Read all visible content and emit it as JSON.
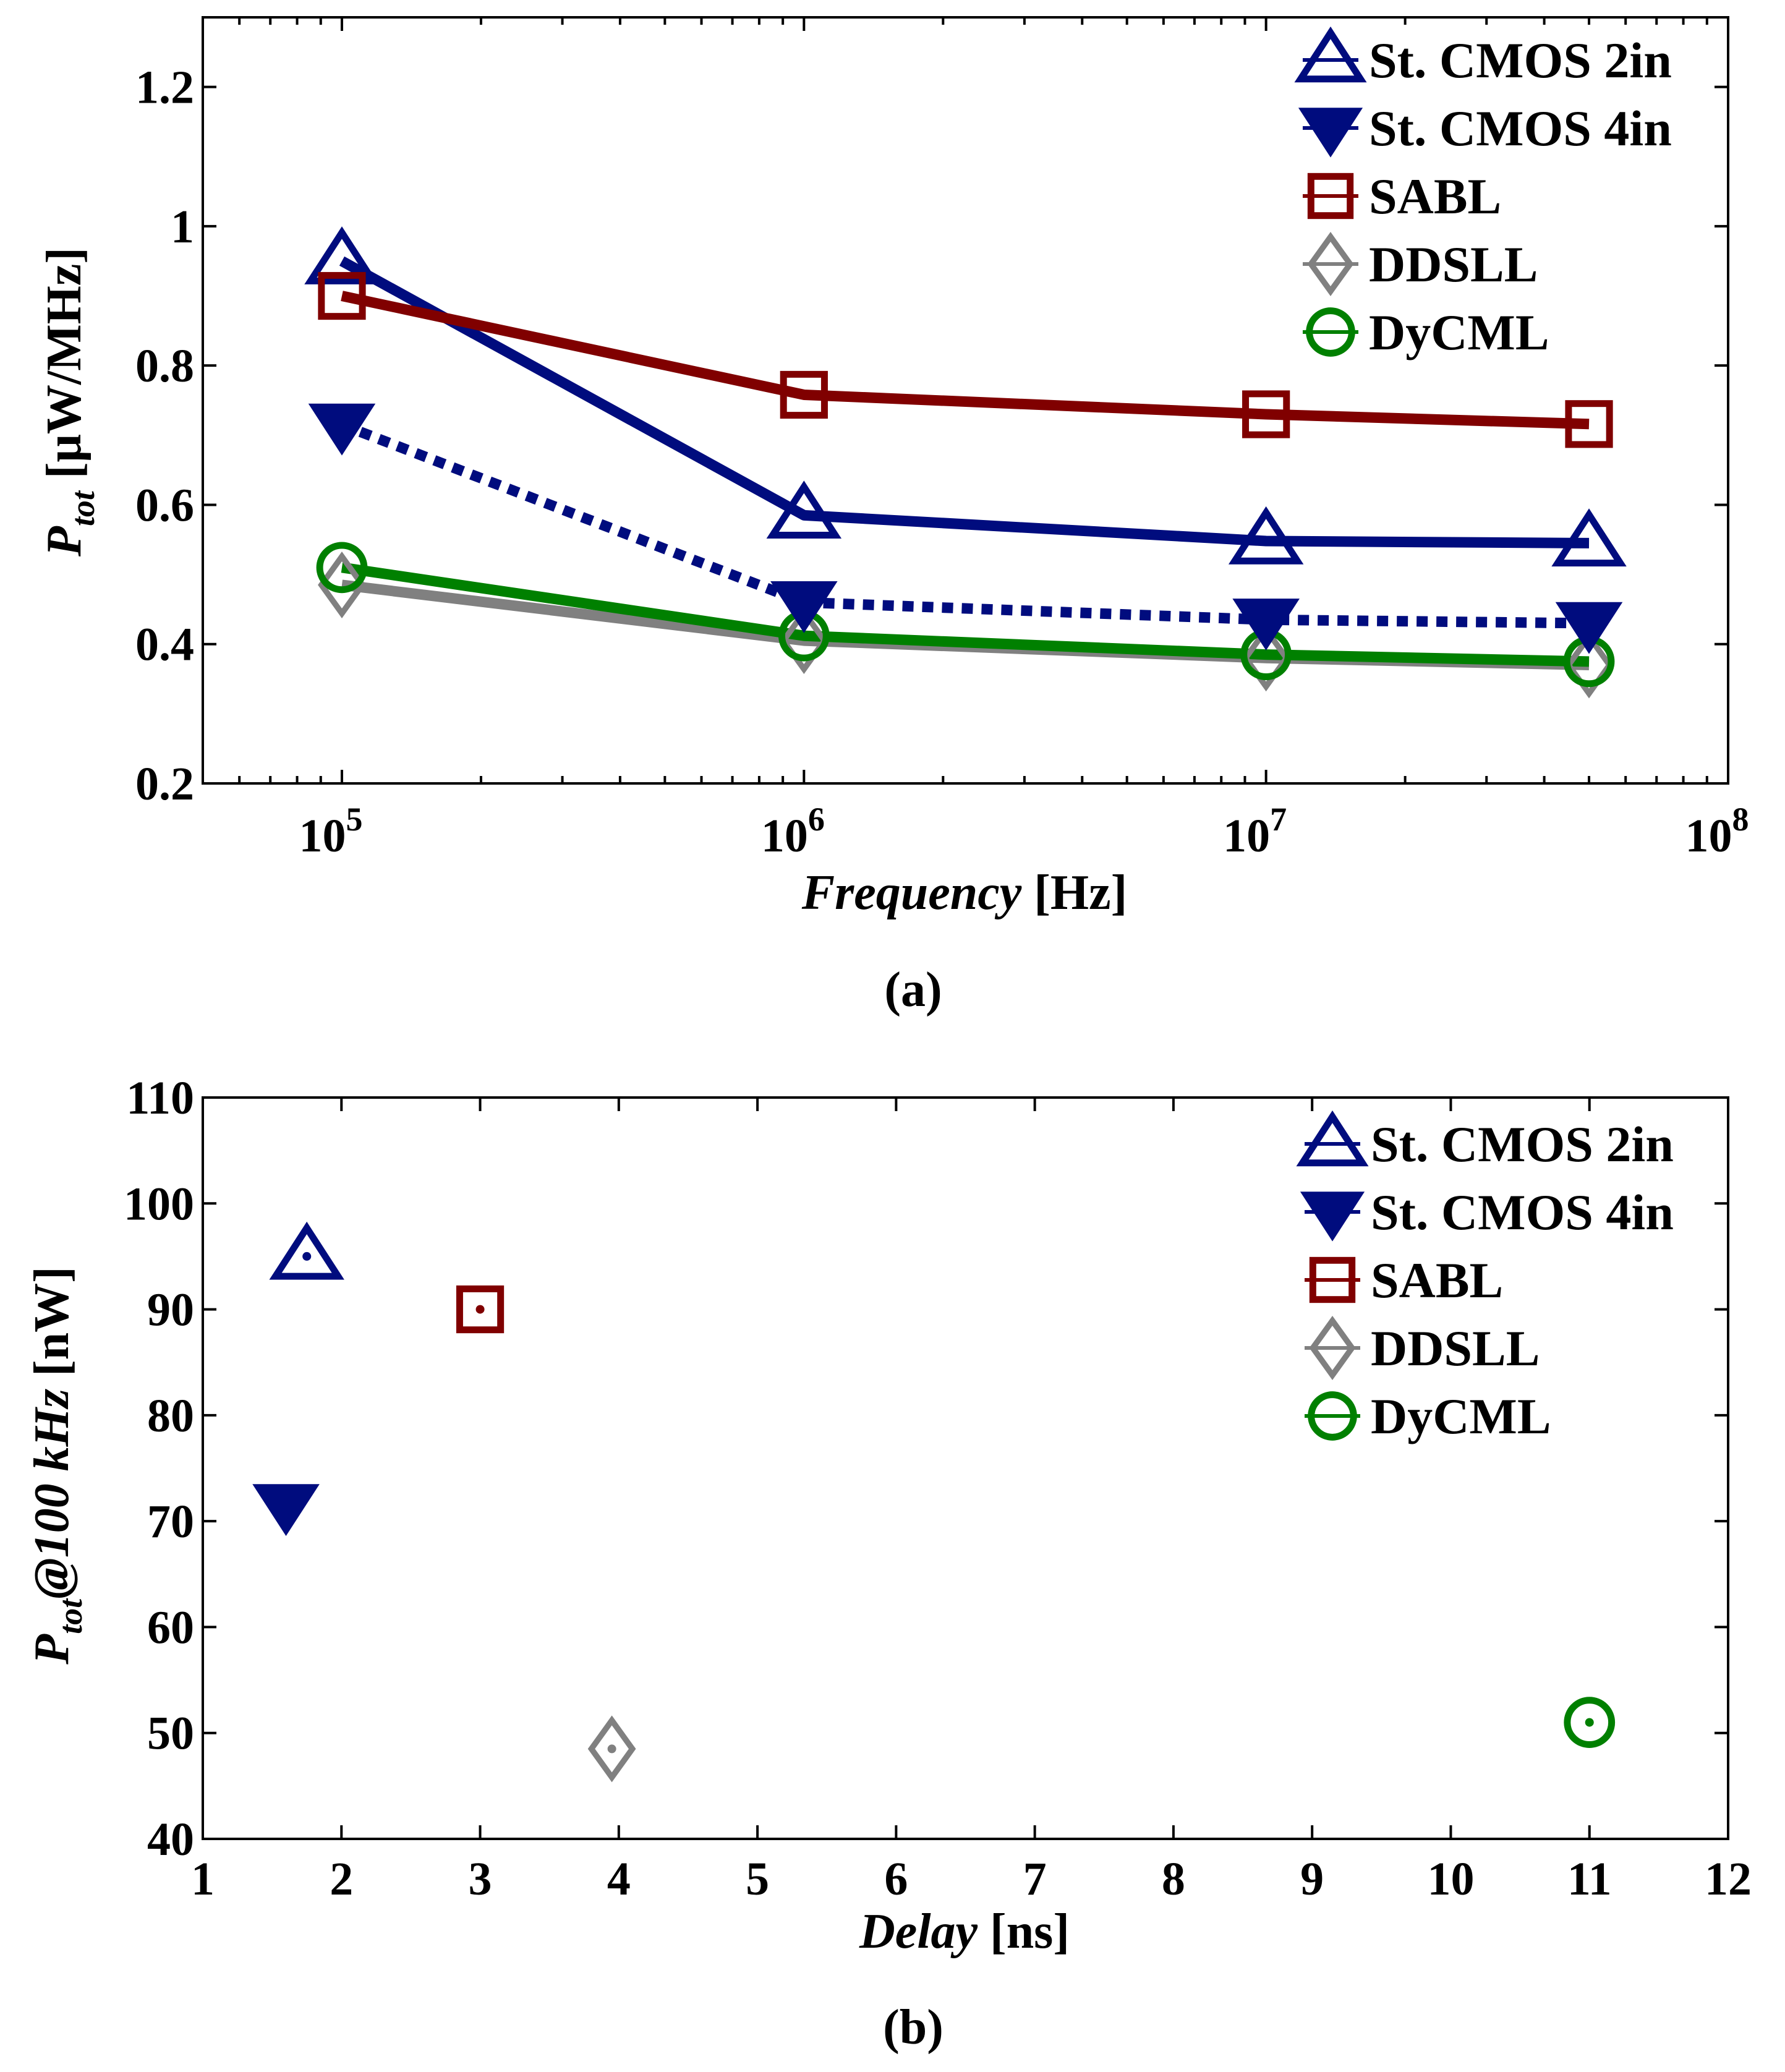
{
  "colors": {
    "St. CMOS 2in": "#000c7e",
    "St. CMOS 4in": "#000c7e",
    "SABL": "#800000",
    "DDSLL": "#808080",
    "DyCML": "#008000",
    "axes": "#000000"
  },
  "chart_data": [
    {
      "type": "line",
      "panel_label": "(a)",
      "x_scale": "log",
      "xlim": [
        50000,
        100000000
      ],
      "ylim": [
        0.2,
        1.3
      ],
      "x_ticks": [
        100000,
        1000000,
        10000000,
        100000000
      ],
      "x_tick_labels": [
        {
          "base": "10",
          "exp": "5"
        },
        {
          "base": "10",
          "exp": "6"
        },
        {
          "base": "10",
          "exp": "7"
        },
        {
          "base": "10",
          "exp": "8"
        }
      ],
      "y_ticks": [
        0.2,
        0.4,
        0.6,
        0.8,
        1,
        1.2
      ],
      "y_tick_labels": [
        "0.2",
        "0.4",
        "0.6",
        "0.8",
        "1",
        "1.2"
      ],
      "xlabel": {
        "main": "Frequency",
        "unit": " [Hz]"
      },
      "ylabel": {
        "main": "P",
        "sub": "tot",
        "unit": " [μW/MHz]"
      },
      "x": [
        100000,
        1000000,
        10000000,
        50000000
      ],
      "legend_position": "top-right",
      "grid": false,
      "series": [
        {
          "name": "St. CMOS 2in",
          "marker": "triangle-up",
          "style": "solid",
          "values": [
            0.95,
            0.585,
            0.548,
            0.545
          ]
        },
        {
          "name": "St. CMOS 4in",
          "marker": "triangle-down",
          "style": "dotted",
          "values": [
            0.715,
            0.46,
            0.435,
            0.43
          ]
        },
        {
          "name": "SABL",
          "marker": "square",
          "style": "solid",
          "values": [
            0.9,
            0.758,
            0.73,
            0.716
          ]
        },
        {
          "name": "DDSLL",
          "marker": "diamond",
          "style": "solid",
          "values": [
            0.485,
            0.405,
            0.38,
            0.37
          ]
        },
        {
          "name": "DyCML",
          "marker": "circle",
          "style": "solid",
          "values": [
            0.51,
            0.412,
            0.385,
            0.375
          ]
        }
      ]
    },
    {
      "type": "scatter",
      "panel_label": "(b)",
      "xlim": [
        1,
        12
      ],
      "ylim": [
        40,
        110
      ],
      "x_ticks": [
        1,
        2,
        3,
        4,
        5,
        6,
        7,
        8,
        9,
        10,
        11,
        12
      ],
      "x_tick_labels": [
        "1",
        "2",
        "3",
        "4",
        "5",
        "6",
        "7",
        "8",
        "9",
        "10",
        "11",
        "12"
      ],
      "y_ticks": [
        40,
        50,
        60,
        70,
        80,
        90,
        100,
        110
      ],
      "y_tick_labels": [
        "40",
        "50",
        "60",
        "70",
        "80",
        "90",
        "100",
        "110"
      ],
      "xlabel": {
        "main": "Delay",
        "unit": " [ns]"
      },
      "ylabel": {
        "main": "P",
        "sub": "tot",
        "mid": "@100 kHz",
        "unit": " [nW]"
      },
      "legend_position": "top-right",
      "grid": false,
      "series": [
        {
          "name": "St. CMOS 2in",
          "marker": "triangle-up",
          "points": [
            {
              "x": 1.75,
              "y": 95
            }
          ]
        },
        {
          "name": "St. CMOS 4in",
          "marker": "triangle-down",
          "points": [
            {
              "x": 1.6,
              "y": 71.5
            }
          ]
        },
        {
          "name": "SABL",
          "marker": "square",
          "points": [
            {
              "x": 3.0,
              "y": 90
            }
          ]
        },
        {
          "name": "DDSLL",
          "marker": "diamond",
          "points": [
            {
              "x": 3.95,
              "y": 48.5
            }
          ]
        },
        {
          "name": "DyCML",
          "marker": "circle",
          "points": [
            {
              "x": 11.0,
              "y": 51
            }
          ]
        }
      ]
    }
  ]
}
